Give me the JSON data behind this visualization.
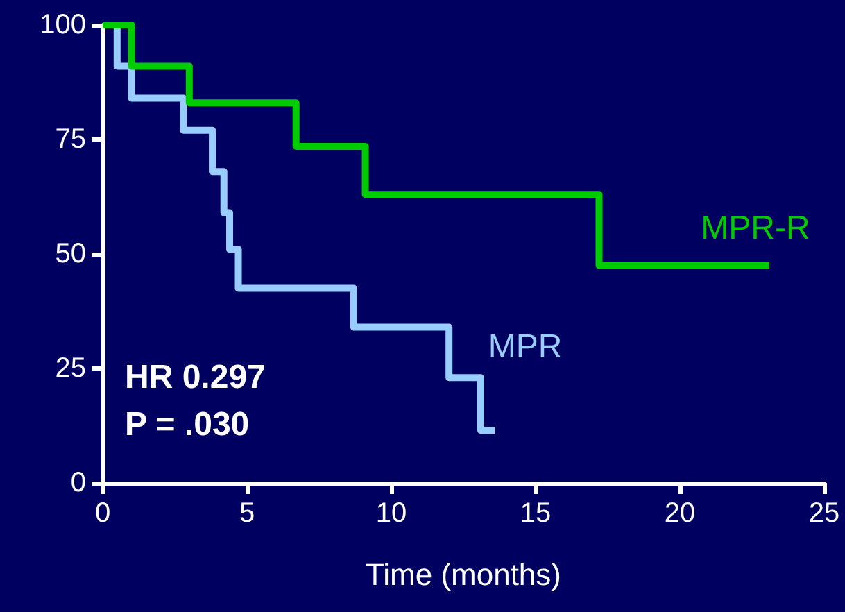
{
  "chart_data": {
    "type": "step",
    "xlabel": "Time (months)",
    "xlim": [
      0,
      25
    ],
    "xticks": [
      0,
      5,
      10,
      15,
      20,
      25
    ],
    "ylim": [
      0,
      100
    ],
    "yticks": [
      0,
      25,
      50,
      75,
      100
    ],
    "grid": false,
    "legend": false,
    "marker": "none",
    "line_style": "solid",
    "annotations": [
      "HR 0.297",
      "P = .030"
    ],
    "series": [
      {
        "name": "MPR-R",
        "color": "#00cc00",
        "x": [
          0,
          1,
          3,
          6.7,
          9.1,
          17.2,
          23.1
        ],
        "values": [
          100,
          91,
          83,
          73.5,
          63,
          47.5,
          47.5
        ]
      },
      {
        "name": "MPR",
        "color": "#99ccff",
        "x": [
          0,
          0.5,
          1,
          2.8,
          3.8,
          4.2,
          4.4,
          4.7,
          8.7,
          12,
          13.1,
          13.6
        ],
        "values": [
          100,
          91,
          84,
          77,
          68,
          59,
          51,
          42.5,
          34,
          23,
          11.5,
          11.5
        ]
      }
    ]
  }
}
